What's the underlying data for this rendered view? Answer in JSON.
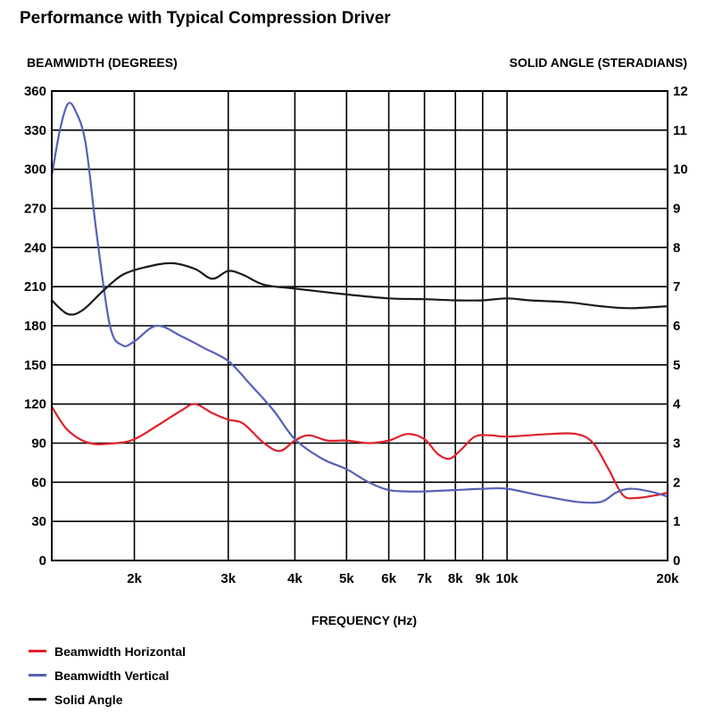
{
  "title": "Performance with Typical Compression Driver",
  "chart_data": {
    "type": "line",
    "title": "Performance with Typical Compression Driver",
    "xlabel": "FREQUENCY (Hz)",
    "ylabel": "BEAMWIDTH (DEGREES)",
    "ylabel_right": "SOLID ANGLE (STERADIANS)",
    "x_scale": "log",
    "xlim": [
      1400,
      20000
    ],
    "x_ticks": [
      {
        "value": 2000,
        "label": "2k"
      },
      {
        "value": 3000,
        "label": "3k"
      },
      {
        "value": 4000,
        "label": "4k"
      },
      {
        "value": 5000,
        "label": "5k"
      },
      {
        "value": 6000,
        "label": "6k"
      },
      {
        "value": 7000,
        "label": "7k"
      },
      {
        "value": 8000,
        "label": "8k"
      },
      {
        "value": 9000,
        "label": "9k"
      },
      {
        "value": 10000,
        "label": "10k"
      },
      {
        "value": 20000,
        "label": "20k"
      }
    ],
    "ylim": [
      0,
      360
    ],
    "y_ticks": [
      0,
      30,
      60,
      90,
      120,
      150,
      180,
      210,
      240,
      270,
      300,
      330,
      360
    ],
    "ylim_right": [
      0,
      12
    ],
    "y_ticks_right": [
      0,
      1,
      2,
      3,
      4,
      5,
      6,
      7,
      8,
      9,
      10,
      11,
      12
    ],
    "grid": true,
    "legend_position": "bottom-left",
    "series": [
      {
        "name": "Beamwidth Horizontal",
        "color": "#e0212b",
        "axis": "left",
        "points": [
          [
            1400,
            118
          ],
          [
            1500,
            100
          ],
          [
            1650,
            90
          ],
          [
            1850,
            90
          ],
          [
            2000,
            93
          ],
          [
            2200,
            103
          ],
          [
            2450,
            115
          ],
          [
            2600,
            120
          ],
          [
            2800,
            113
          ],
          [
            3000,
            108
          ],
          [
            3200,
            105
          ],
          [
            3500,
            90
          ],
          [
            3750,
            84
          ],
          [
            4000,
            92
          ],
          [
            4250,
            96
          ],
          [
            4600,
            92
          ],
          [
            5000,
            92
          ],
          [
            5500,
            90
          ],
          [
            6000,
            92
          ],
          [
            6500,
            97
          ],
          [
            7000,
            93
          ],
          [
            7400,
            82
          ],
          [
            7800,
            78
          ],
          [
            8200,
            85
          ],
          [
            8700,
            95
          ],
          [
            9300,
            96
          ],
          [
            10000,
            95
          ],
          [
            12000,
            97
          ],
          [
            13500,
            97
          ],
          [
            14500,
            90
          ],
          [
            15500,
            70
          ],
          [
            16500,
            50
          ],
          [
            17500,
            48
          ],
          [
            19000,
            50
          ],
          [
            20000,
            52
          ]
        ]
      },
      {
        "name": "Beamwidth Vertical",
        "color": "#5561b6",
        "axis": "left",
        "points": [
          [
            1400,
            295
          ],
          [
            1450,
            330
          ],
          [
            1500,
            350
          ],
          [
            1550,
            345
          ],
          [
            1620,
            320
          ],
          [
            1700,
            250
          ],
          [
            1800,
            180
          ],
          [
            1900,
            165
          ],
          [
            2000,
            168
          ],
          [
            2200,
            180
          ],
          [
            2450,
            172
          ],
          [
            2700,
            163
          ],
          [
            3000,
            153
          ],
          [
            3300,
            135
          ],
          [
            3650,
            115
          ],
          [
            4000,
            93
          ],
          [
            4500,
            78
          ],
          [
            5000,
            70
          ],
          [
            5500,
            60
          ],
          [
            6000,
            54
          ],
          [
            6500,
            53
          ],
          [
            7000,
            53
          ],
          [
            8000,
            54
          ],
          [
            9000,
            55
          ],
          [
            10000,
            55
          ],
          [
            11500,
            50
          ],
          [
            13500,
            45
          ],
          [
            15000,
            45
          ],
          [
            16000,
            52
          ],
          [
            17000,
            55
          ],
          [
            18500,
            53
          ],
          [
            20000,
            49
          ]
        ]
      },
      {
        "name": "Solid Angle",
        "color": "#1a1a1a",
        "axis": "right",
        "points": [
          [
            1400,
            6.65
          ],
          [
            1500,
            6.3
          ],
          [
            1600,
            6.4
          ],
          [
            1750,
            6.9
          ],
          [
            1900,
            7.3
          ],
          [
            2100,
            7.5
          ],
          [
            2350,
            7.6
          ],
          [
            2600,
            7.45
          ],
          [
            2800,
            7.2
          ],
          [
            3000,
            7.4
          ],
          [
            3200,
            7.3
          ],
          [
            3500,
            7.05
          ],
          [
            4000,
            6.95
          ],
          [
            5000,
            6.8
          ],
          [
            6000,
            6.7
          ],
          [
            7000,
            6.68
          ],
          [
            8000,
            6.65
          ],
          [
            9000,
            6.65
          ],
          [
            10000,
            6.7
          ],
          [
            11000,
            6.65
          ],
          [
            13000,
            6.6
          ],
          [
            15000,
            6.5
          ],
          [
            17000,
            6.45
          ],
          [
            20000,
            6.5
          ]
        ]
      }
    ]
  }
}
